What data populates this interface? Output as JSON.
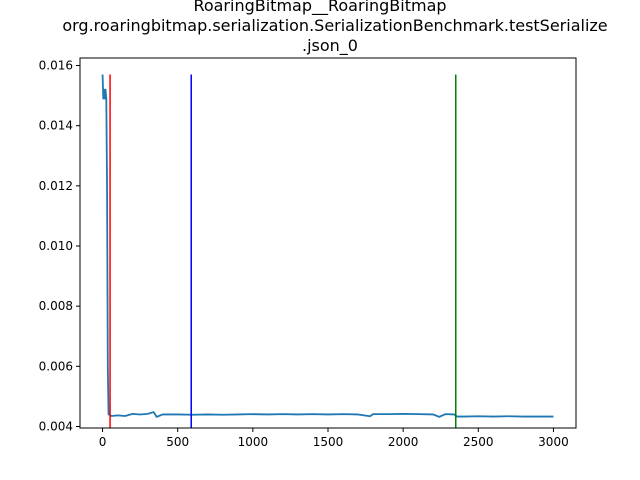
{
  "chart_data": {
    "type": "line",
    "title_lines": [
      "RoaringBitmap__RoaringBitmap",
      "org.roaringbitmap.serialization.SerializationBenchmark.testSerialize",
      ".json_0"
    ],
    "xlabel": "",
    "ylabel": "",
    "xlim": [
      -150,
      3150
    ],
    "ylim": [
      0.00395,
      0.01625
    ],
    "x_ticks": [
      0,
      500,
      1000,
      1500,
      2000,
      2500,
      3000
    ],
    "x_tick_labels": [
      "0",
      "500",
      "1000",
      "1500",
      "2000",
      "2500",
      "3000"
    ],
    "y_ticks": [
      0.004,
      0.006,
      0.008,
      0.01,
      0.012,
      0.014,
      0.016
    ],
    "y_tick_labels": [
      "0.004",
      "0.006",
      "0.008",
      "0.010",
      "0.012",
      "0.014",
      "0.016"
    ],
    "grid": false,
    "series": [
      {
        "color": "#1f77b4",
        "points": [
          [
            0,
            0.0157
          ],
          [
            5,
            0.0149
          ],
          [
            10,
            0.0152
          ],
          [
            15,
            0.0149
          ],
          [
            20,
            0.0152
          ],
          [
            25,
            0.0149
          ],
          [
            30,
            0.012
          ],
          [
            35,
            0.006
          ],
          [
            40,
            0.0044
          ],
          [
            60,
            0.00435
          ],
          [
            100,
            0.00437
          ],
          [
            150,
            0.00435
          ],
          [
            200,
            0.00442
          ],
          [
            250,
            0.0044
          ],
          [
            300,
            0.00442
          ],
          [
            340,
            0.00448
          ],
          [
            360,
            0.00432
          ],
          [
            400,
            0.0044
          ],
          [
            500,
            0.0044
          ],
          [
            600,
            0.00439
          ],
          [
            700,
            0.0044
          ],
          [
            800,
            0.00439
          ],
          [
            900,
            0.0044
          ],
          [
            1000,
            0.00441
          ],
          [
            1100,
            0.0044
          ],
          [
            1200,
            0.00441
          ],
          [
            1300,
            0.0044
          ],
          [
            1400,
            0.00441
          ],
          [
            1500,
            0.0044
          ],
          [
            1600,
            0.00441
          ],
          [
            1700,
            0.0044
          ],
          [
            1780,
            0.00434
          ],
          [
            1800,
            0.00441
          ],
          [
            1900,
            0.00441
          ],
          [
            2000,
            0.00442
          ],
          [
            2100,
            0.00441
          ],
          [
            2200,
            0.0044
          ],
          [
            2240,
            0.00432
          ],
          [
            2280,
            0.00441
          ],
          [
            2340,
            0.0044
          ],
          [
            2360,
            0.00433
          ],
          [
            2400,
            0.00433
          ],
          [
            2500,
            0.00434
          ],
          [
            2600,
            0.00433
          ],
          [
            2700,
            0.00434
          ],
          [
            2800,
            0.00433
          ],
          [
            2900,
            0.00433
          ],
          [
            3000,
            0.00433
          ]
        ]
      }
    ],
    "vertical_markers": [
      {
        "x": 50,
        "color": "#ff0000",
        "y_top": 0.0157
      },
      {
        "x": 590,
        "color": "#0000ff",
        "y_top": 0.0157
      },
      {
        "x": 2350,
        "color": "#008000",
        "y_top": 0.0157
      }
    ]
  }
}
